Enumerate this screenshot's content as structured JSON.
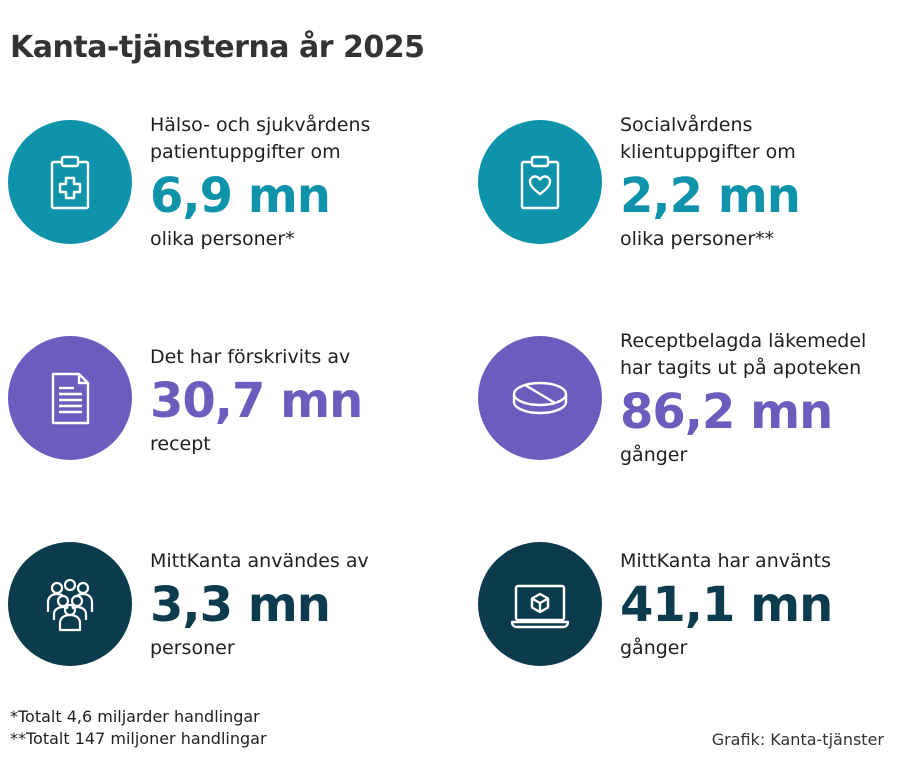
{
  "title": "Kanta-tjänsterna år 2025",
  "stats": [
    {
      "label_line1": "Hälso- och sjukvårdens",
      "label_line2": "patientuppgifter om",
      "value": "6,9 mn",
      "sub": "olika personer*",
      "icon": "clipboard-plus-icon",
      "color": "#0e93ab"
    },
    {
      "label_line1": "Socialvårdens",
      "label_line2": "klientuppgifter om",
      "value": "2,2 mn",
      "sub": "olika personer**",
      "icon": "clipboard-heart-icon",
      "color": "#0e93ab"
    },
    {
      "label_line1": "Det har förskrivits av",
      "label_line2": "",
      "value": "30,7 mn",
      "sub": "recept",
      "icon": "document-icon",
      "color": "#6d5cbd"
    },
    {
      "label_line1": "Receptbelagda läkemedel",
      "label_line2": "har tagits ut på apoteken",
      "value": "86,2 mn",
      "sub": "gånger",
      "icon": "pill-icon",
      "color": "#6d5cbd"
    },
    {
      "label_line1": "MittKanta användes av",
      "label_line2": "",
      "value": "3,3 mn",
      "sub": "personer",
      "icon": "people-group-icon",
      "color": "#0c3b4d"
    },
    {
      "label_line1": "MittKanta har använts",
      "label_line2": "",
      "value": "41,1 mn",
      "sub": "gånger",
      "icon": "laptop-cube-icon",
      "color": "#0c3b4d"
    }
  ],
  "footnotes": {
    "line1": "*Totalt 4,6 miljarder handlingar",
    "line2": "**Totalt 147 miljoner handlingar"
  },
  "credit": "Grafik: Kanta-tjänster"
}
